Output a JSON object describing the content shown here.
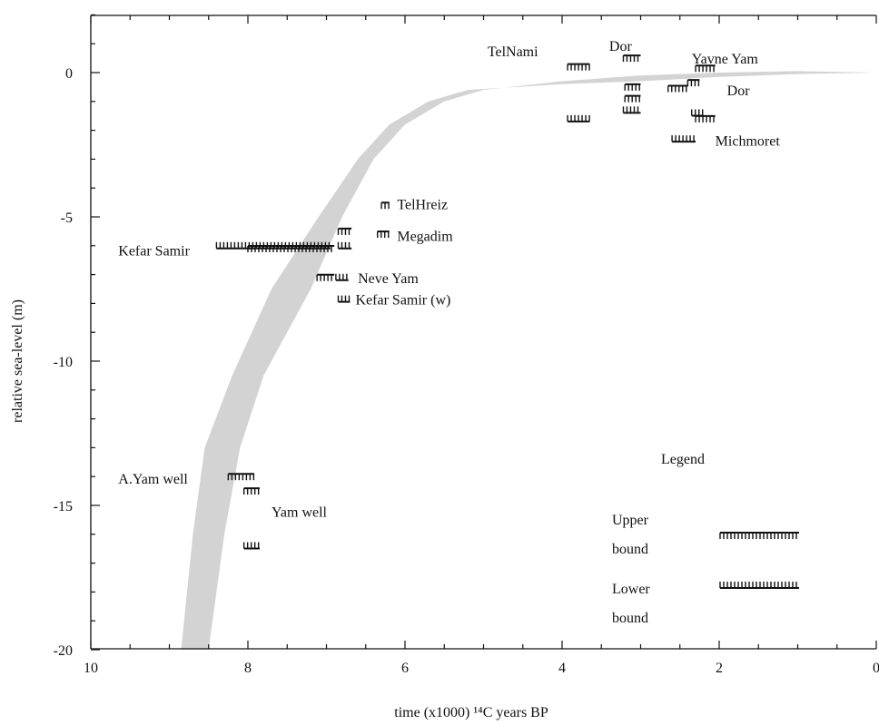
{
  "chart_data": {
    "type": "scatter",
    "title": "",
    "xlabel": "time (x1000)  ¹⁴C years BP",
    "ylabel": "relative sea-level (m)",
    "xlim": [
      10,
      0
    ],
    "ylim": [
      -20,
      2
    ],
    "x_ticks": [
      10,
      8,
      6,
      4,
      2,
      0
    ],
    "y_ticks": [
      0,
      -5,
      -10,
      -15,
      -20
    ],
    "x_tick_labels": [
      "10",
      "8",
      "6",
      "4",
      "2",
      "0"
    ],
    "y_tick_labels": [
      "0",
      "-5",
      "-10",
      "-15",
      "-20"
    ],
    "envelope": {
      "upper": [
        [
          8.5,
          -20
        ],
        [
          8.3,
          -16
        ],
        [
          8.1,
          -13
        ],
        [
          7.8,
          -10.5
        ],
        [
          7.2,
          -7.5
        ],
        [
          6.8,
          -5
        ],
        [
          6.4,
          -3
        ],
        [
          6.0,
          -1.8
        ],
        [
          5.5,
          -1.0
        ],
        [
          5.0,
          -0.6
        ],
        [
          4.0,
          -0.3
        ],
        [
          3.0,
          -0.1
        ],
        [
          2.0,
          0.0
        ],
        [
          1.0,
          0.05
        ],
        [
          0.0,
          0.0
        ]
      ],
      "lower": [
        [
          8.85,
          -20
        ],
        [
          8.7,
          -16
        ],
        [
          8.55,
          -13
        ],
        [
          8.2,
          -10.5
        ],
        [
          7.7,
          -7.5
        ],
        [
          7.1,
          -5
        ],
        [
          6.6,
          -3
        ],
        [
          6.2,
          -1.8
        ],
        [
          5.7,
          -1.0
        ],
        [
          5.2,
          -0.6
        ],
        [
          4.0,
          -0.4
        ],
        [
          3.0,
          -0.3
        ],
        [
          2.0,
          -0.15
        ],
        [
          1.0,
          -0.05
        ],
        [
          0.0,
          0.0
        ]
      ],
      "color": "#d3d3d3"
    },
    "upper_bound_markers": [
      {
        "x0": 3.93,
        "x1": 3.65,
        "y": 0.2
      },
      {
        "x0": 3.22,
        "x1": 3.0,
        "y": 0.5
      },
      {
        "x0": 3.2,
        "x1": 3.0,
        "y": -0.5
      },
      {
        "x0": 3.2,
        "x1": 3.0,
        "y": -0.9
      },
      {
        "x0": 2.3,
        "x1": 2.05,
        "y": 0.15
      },
      {
        "x0": 2.65,
        "x1": 2.4,
        "y": -0.55
      },
      {
        "x0": 2.4,
        "x1": 2.25,
        "y": -0.35
      },
      {
        "x0": 2.3,
        "x1": 2.05,
        "y": -1.6
      },
      {
        "x0": 6.3,
        "x1": 6.2,
        "y": -4.6
      },
      {
        "x0": 6.35,
        "x1": 6.2,
        "y": -5.6
      },
      {
        "x0": 8.0,
        "x1": 6.9,
        "y": -6.1
      },
      {
        "x0": 6.85,
        "x1": 6.68,
        "y": -5.5
      },
      {
        "x0": 7.12,
        "x1": 6.9,
        "y": -7.1
      },
      {
        "x0": 8.25,
        "x1": 7.92,
        "y": -14.0
      },
      {
        "x0": 8.05,
        "x1": 7.85,
        "y": -14.5
      }
    ],
    "lower_bound_markers": [
      {
        "x0": 3.93,
        "x1": 3.65,
        "y": -1.6
      },
      {
        "x0": 3.22,
        "x1": 3.0,
        "y": -1.3
      },
      {
        "x0": 2.6,
        "x1": 2.3,
        "y": -2.3
      },
      {
        "x0": 2.35,
        "x1": 2.2,
        "y": -1.4
      },
      {
        "x0": 8.4,
        "x1": 6.95,
        "y": -6.0
      },
      {
        "x0": 6.85,
        "x1": 6.68,
        "y": -6.0
      },
      {
        "x0": 6.88,
        "x1": 6.72,
        "y": -7.1
      },
      {
        "x0": 6.85,
        "x1": 6.7,
        "y": -7.85
      },
      {
        "x0": 8.05,
        "x1": 7.85,
        "y": -16.4
      }
    ],
    "site_labels": [
      {
        "text": "TelNami",
        "x": 4.95,
        "y": 0.75
      },
      {
        "text": "Dor",
        "x": 3.4,
        "y": 0.95
      },
      {
        "text": "Yavne Yam",
        "x": 2.35,
        "y": 0.5
      },
      {
        "text": "Dor",
        "x": 1.9,
        "y": -0.6
      },
      {
        "text": "Michmoret",
        "x": 2.05,
        "y": -2.35
      },
      {
        "text": "TelHreiz",
        "x": 6.1,
        "y": -4.55
      },
      {
        "text": "Megadim",
        "x": 6.1,
        "y": -5.65
      },
      {
        "text": "Kefar Samir",
        "x": 9.65,
        "y": -6.15
      },
      {
        "text": "Neve Yam",
        "x": 6.6,
        "y": -7.1
      },
      {
        "text": "Kefar Samir (w)",
        "x": 6.63,
        "y": -7.85
      },
      {
        "text": "A.Yam well",
        "x": 9.65,
        "y": -14.05
      },
      {
        "text": "Yam well",
        "x": 7.7,
        "y": -15.2
      }
    ],
    "legend": {
      "title": "Legend",
      "upper_label_line1": "Upper",
      "upper_label_line2": "bound",
      "lower_label_line1": "Lower",
      "lower_label_line2": "bound",
      "placement": "bottom-right"
    }
  }
}
